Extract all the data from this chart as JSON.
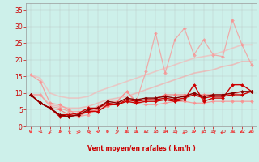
{
  "title": "",
  "xlabel": "Vent moyen/en rafales ( km/h )",
  "ylabel": "",
  "xlim": [
    -0.5,
    23.5
  ],
  "ylim": [
    0,
    37
  ],
  "yticks": [
    0,
    5,
    10,
    15,
    20,
    25,
    30,
    35
  ],
  "xticks": [
    0,
    1,
    2,
    3,
    4,
    5,
    6,
    7,
    8,
    9,
    10,
    11,
    12,
    13,
    14,
    15,
    16,
    17,
    18,
    19,
    20,
    21,
    22,
    23
  ],
  "bg_color": "#cdf0ea",
  "grid_color": "#b0b0b0",
  "series": [
    {
      "color": "#ff8888",
      "alpha": 0.75,
      "lw": 0.9,
      "marker": "D",
      "ms": 2.0,
      "data": [
        15.5,
        13.5,
        7.0,
        6.5,
        5.0,
        3.0,
        3.5,
        5.5,
        6.5,
        7.5,
        10.5,
        7.0,
        6.5,
        6.5,
        7.0,
        7.5,
        7.5,
        7.0,
        7.0,
        7.5,
        7.5,
        7.5,
        7.5,
        7.5
      ]
    },
    {
      "color": "#ff8888",
      "alpha": 0.65,
      "lw": 0.9,
      "marker": "D",
      "ms": 2.0,
      "data": [
        9.5,
        9.5,
        6.0,
        5.5,
        4.5,
        4.5,
        4.5,
        6.0,
        7.5,
        7.5,
        10.5,
        7.5,
        16.5,
        28.0,
        16.0,
        26.0,
        29.5,
        21.5,
        26.0,
        21.5,
        21.0,
        32.0,
        24.5,
        18.5
      ]
    },
    {
      "color": "#ff6666",
      "alpha": 0.75,
      "lw": 0.9,
      "marker": "D",
      "ms": 2.0,
      "data": [
        9.5,
        7.0,
        5.5,
        5.0,
        3.5,
        3.0,
        4.5,
        5.0,
        6.0,
        7.0,
        8.5,
        7.5,
        8.0,
        8.5,
        9.5,
        9.5,
        9.5,
        9.5,
        9.5,
        9.5,
        9.5,
        9.5,
        10.5,
        10.5
      ]
    },
    {
      "color": "#ff9999",
      "alpha": 0.55,
      "lw": 1.2,
      "marker": null,
      "ms": 0,
      "data": [
        9.5,
        9.5,
        6.5,
        6.0,
        5.5,
        5.5,
        6.0,
        7.0,
        8.0,
        8.5,
        9.0,
        10.0,
        11.0,
        12.0,
        13.0,
        14.0,
        15.0,
        16.0,
        16.5,
        17.0,
        18.0,
        18.5,
        19.5,
        19.5
      ]
    },
    {
      "color": "#ffaaaa",
      "alpha": 0.55,
      "lw": 1.2,
      "marker": null,
      "ms": 0,
      "data": [
        15.5,
        14.5,
        10.0,
        9.0,
        8.5,
        8.5,
        9.0,
        10.5,
        11.5,
        12.5,
        13.5,
        14.5,
        15.5,
        16.5,
        17.5,
        18.5,
        19.5,
        20.5,
        21.0,
        21.5,
        22.5,
        23.5,
        24.5,
        24.5
      ]
    },
    {
      "color": "#cc0000",
      "alpha": 1.0,
      "lw": 1.0,
      "marker": "D",
      "ms": 2.0,
      "data": [
        9.5,
        7.0,
        5.5,
        3.0,
        3.0,
        3.5,
        4.5,
        4.5,
        6.5,
        6.5,
        7.5,
        7.0,
        7.5,
        7.5,
        8.0,
        7.5,
        8.0,
        12.5,
        7.5,
        8.5,
        8.5,
        12.5,
        12.5,
        10.5
      ]
    },
    {
      "color": "#cc0000",
      "alpha": 1.0,
      "lw": 1.0,
      "marker": "D",
      "ms": 2.0,
      "data": [
        9.5,
        7.0,
        5.5,
        3.5,
        3.5,
        4.0,
        5.5,
        5.5,
        7.0,
        6.5,
        8.0,
        7.5,
        8.0,
        8.0,
        8.5,
        8.0,
        8.5,
        9.5,
        8.5,
        9.0,
        9.0,
        9.5,
        9.5,
        10.5
      ]
    },
    {
      "color": "#880000",
      "alpha": 1.0,
      "lw": 1.0,
      "marker": "D",
      "ms": 2.0,
      "data": [
        9.5,
        7.0,
        5.5,
        3.5,
        3.0,
        3.5,
        5.0,
        5.5,
        7.5,
        7.0,
        8.5,
        8.0,
        8.5,
        8.5,
        9.0,
        8.5,
        9.0,
        10.0,
        9.0,
        9.5,
        9.5,
        10.0,
        10.5,
        10.5
      ]
    }
  ],
  "wind_arrow_color": "#ff4444",
  "arrow_directions": [
    0,
    45,
    135,
    315,
    225,
    90,
    270,
    45,
    0,
    135,
    0,
    315,
    45,
    0,
    315,
    270,
    135,
    315,
    90,
    270,
    135,
    315,
    45,
    45
  ]
}
